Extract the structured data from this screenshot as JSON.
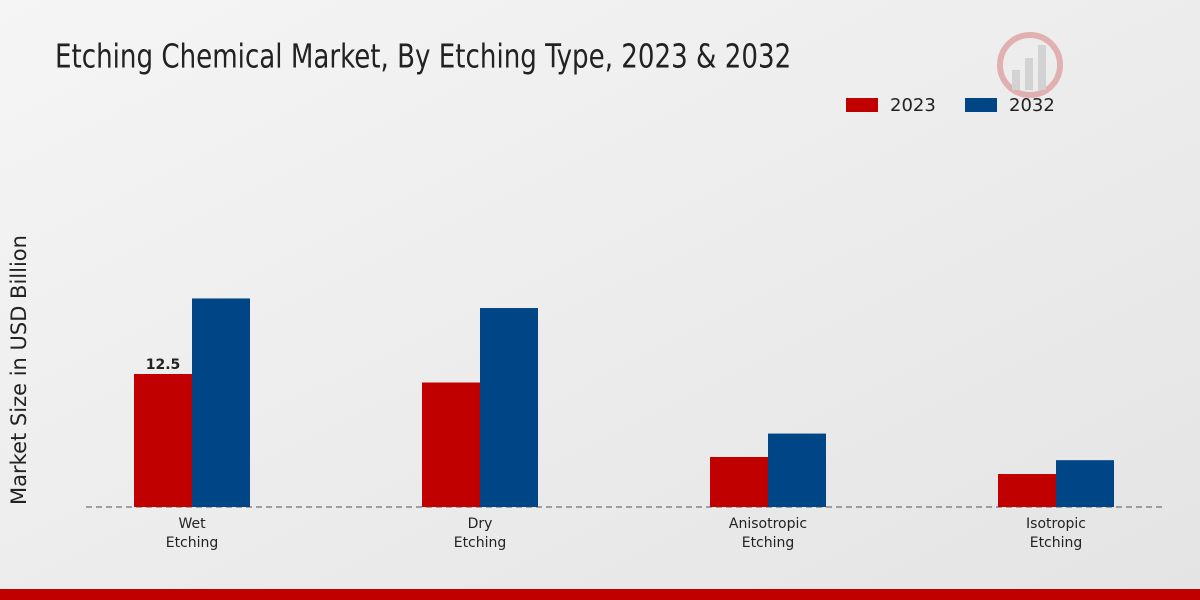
{
  "chart_data": {
    "type": "bar",
    "title": "Etching Chemical Market, By Etching Type, 2023 & 2032",
    "y_label": "Market Size in USD Billion",
    "categories": [
      "Wet Etching",
      "Dry Etching",
      "Anisotropic Etching",
      "Isotropic Etching"
    ],
    "series": [
      {
        "name": "2023",
        "color": "#c00000",
        "values": [
          12.5,
          11.7,
          4.7,
          3.1
        ],
        "value_labels": [
          "12.5",
          null,
          null,
          null
        ]
      },
      {
        "name": "2032",
        "color": "#004586",
        "values": [
          19.6,
          18.7,
          6.9,
          4.4
        ]
      }
    ],
    "ylim": [
      0,
      25
    ]
  }
}
